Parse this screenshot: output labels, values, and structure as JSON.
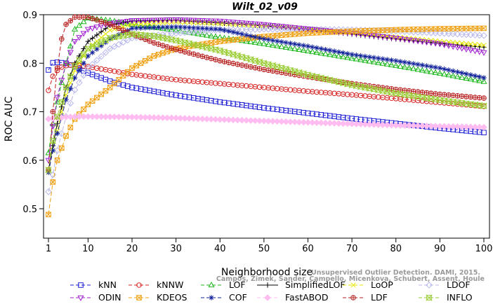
{
  "watermark": {
    "line1": "Unsupervised Outlier Detection. DAMI, 2015.",
    "line2": "Campos, Zimek, Sander, Campello, Micenkova, Schubert, Assent, Houle"
  },
  "chart_data": {
    "type": "line",
    "title": "Wilt_02_v09",
    "xlabel": "Neighborhood size",
    "ylabel": "ROC AUC",
    "xlim": [
      1,
      100
    ],
    "ylim": [
      0.45,
      0.9
    ],
    "xticks": [
      1,
      10,
      20,
      30,
      40,
      50,
      60,
      70,
      80,
      90,
      100
    ],
    "yticks": [
      0.5,
      0.6,
      0.7,
      0.8,
      0.9
    ],
    "legend_position": "bottom",
    "series": [
      {
        "name": "kNN",
        "color": "#1f1fd6",
        "marker": "square",
        "dash": "4,3",
        "x": [
          1,
          2,
          3,
          5,
          7,
          10,
          15,
          20,
          30,
          40,
          50,
          60,
          70,
          80,
          90,
          100
        ],
        "y": [
          0.786,
          0.801,
          0.802,
          0.8,
          0.793,
          0.78,
          0.763,
          0.75,
          0.734,
          0.72,
          0.708,
          0.697,
          0.686,
          0.676,
          0.666,
          0.657
        ]
      },
      {
        "name": "kNNW",
        "color": "#d62020",
        "marker": "circle",
        "dash": "6,3",
        "x": [
          1,
          2,
          3,
          4,
          5,
          7,
          10,
          15,
          20,
          30,
          40,
          50,
          60,
          70,
          80,
          90,
          100
        ],
        "y": [
          0.744,
          0.773,
          0.785,
          0.792,
          0.795,
          0.797,
          0.793,
          0.785,
          0.777,
          0.766,
          0.758,
          0.75,
          0.742,
          0.735,
          0.727,
          0.719,
          0.711
        ]
      },
      {
        "name": "LOF",
        "color": "#1fb81f",
        "marker": "triangle-up",
        "dash": "6,3",
        "x": [
          1,
          2,
          3,
          4,
          5,
          7,
          10,
          15,
          20,
          30,
          40,
          50,
          60,
          70,
          80,
          90,
          100
        ],
        "y": [
          0.615,
          0.675,
          0.72,
          0.76,
          0.8,
          0.87,
          0.893,
          0.888,
          0.88,
          0.868,
          0.853,
          0.84,
          0.825,
          0.81,
          0.795,
          0.779,
          0.762
        ]
      },
      {
        "name": "SimplifiedLOF",
        "color": "#000000",
        "marker": "plus",
        "dash": "none",
        "x": [
          1,
          2,
          3,
          4,
          5,
          7,
          10,
          15,
          20,
          30,
          40,
          50,
          60,
          70,
          80,
          90,
          100
        ],
        "y": [
          0.58,
          0.63,
          0.675,
          0.71,
          0.75,
          0.8,
          0.845,
          0.878,
          0.887,
          0.888,
          0.883,
          0.877,
          0.87,
          0.86,
          0.85,
          0.841,
          0.833
        ]
      },
      {
        "name": "LoOP",
        "color": "#e6e600",
        "marker": "x",
        "dash": "6,3",
        "x": [
          1,
          2,
          3,
          4,
          5,
          7,
          10,
          15,
          20,
          30,
          40,
          50,
          60,
          70,
          80,
          90,
          100
        ],
        "y": [
          0.575,
          0.62,
          0.66,
          0.7,
          0.735,
          0.785,
          0.83,
          0.868,
          0.88,
          0.885,
          0.882,
          0.877,
          0.871,
          0.863,
          0.854,
          0.845,
          0.837
        ]
      },
      {
        "name": "LDOF",
        "color": "#b8b8ec",
        "marker": "diamond",
        "dash": "6,3",
        "x": [
          1,
          2,
          3,
          5,
          7,
          10,
          15,
          20,
          30,
          40,
          50,
          60,
          70,
          80,
          90,
          100
        ],
        "y": [
          0.535,
          0.57,
          0.62,
          0.69,
          0.745,
          0.79,
          0.83,
          0.852,
          0.862,
          0.868,
          0.87,
          0.87,
          0.869,
          0.866,
          0.862,
          0.857
        ]
      },
      {
        "name": "ODIN",
        "color": "#a020d0",
        "marker": "triangle-down",
        "dash": "6,3",
        "x": [
          1,
          2,
          3,
          5,
          7,
          10,
          15,
          20,
          30,
          40,
          50,
          60,
          70,
          80,
          90,
          100
        ],
        "y": [
          0.6,
          0.67,
          0.73,
          0.8,
          0.845,
          0.87,
          0.882,
          0.888,
          0.89,
          0.887,
          0.88,
          0.871,
          0.862,
          0.852,
          0.84,
          0.822
        ]
      },
      {
        "name": "KDEOS",
        "color": "#f0a010",
        "marker": "square-x",
        "dash": "6,3",
        "x": [
          1,
          2,
          3,
          5,
          7,
          10,
          15,
          20,
          25,
          30,
          40,
          50,
          60,
          70,
          80,
          90,
          100
        ],
        "y": [
          0.488,
          0.555,
          0.6,
          0.65,
          0.685,
          0.715,
          0.75,
          0.79,
          0.815,
          0.83,
          0.845,
          0.855,
          0.862,
          0.866,
          0.869,
          0.871,
          0.872
        ]
      },
      {
        "name": "COF",
        "color": "#10209a",
        "marker": "asterisk",
        "dash": "6,3",
        "x": [
          1,
          2,
          3,
          4,
          5,
          7,
          10,
          15,
          20,
          30,
          40,
          50,
          60,
          70,
          80,
          90,
          100
        ],
        "y": [
          0.575,
          0.62,
          0.655,
          0.69,
          0.725,
          0.77,
          0.815,
          0.85,
          0.872,
          0.875,
          0.87,
          0.85,
          0.835,
          0.818,
          0.805,
          0.79,
          0.77
        ]
      },
      {
        "name": "FastABOD",
        "color": "#ffbcf0",
        "marker": "diamond-filled",
        "dash": "6,3",
        "x": [
          1,
          3,
          5,
          7,
          10,
          20,
          30,
          40,
          50,
          60,
          70,
          80,
          90,
          100
        ],
        "y": [
          0.685,
          0.687,
          0.689,
          0.69,
          0.69,
          0.689,
          0.687,
          0.684,
          0.681,
          0.678,
          0.675,
          0.672,
          0.67,
          0.668
        ]
      },
      {
        "name": "LDF",
        "color": "#b82020",
        "marker": "circle-plus",
        "dash": "6,3",
        "x": [
          1,
          2,
          3,
          4,
          5,
          7,
          10,
          15,
          20,
          25,
          30,
          40,
          50,
          60,
          70,
          80,
          90,
          100
        ],
        "y": [
          0.58,
          0.7,
          0.79,
          0.85,
          0.88,
          0.895,
          0.895,
          0.88,
          0.86,
          0.842,
          0.828,
          0.805,
          0.787,
          0.772,
          0.758,
          0.746,
          0.736,
          0.728
        ]
      },
      {
        "name": "INFLO",
        "color": "#98cc30",
        "marker": "square-cross",
        "dash": "6,3",
        "x": [
          1,
          2,
          3,
          5,
          7,
          10,
          15,
          20,
          25,
          30,
          40,
          50,
          60,
          70,
          80,
          90,
          100
        ],
        "y": [
          0.58,
          0.64,
          0.69,
          0.75,
          0.795,
          0.83,
          0.852,
          0.86,
          0.856,
          0.847,
          0.826,
          0.8,
          0.776,
          0.755,
          0.738,
          0.724,
          0.712
        ]
      }
    ]
  }
}
